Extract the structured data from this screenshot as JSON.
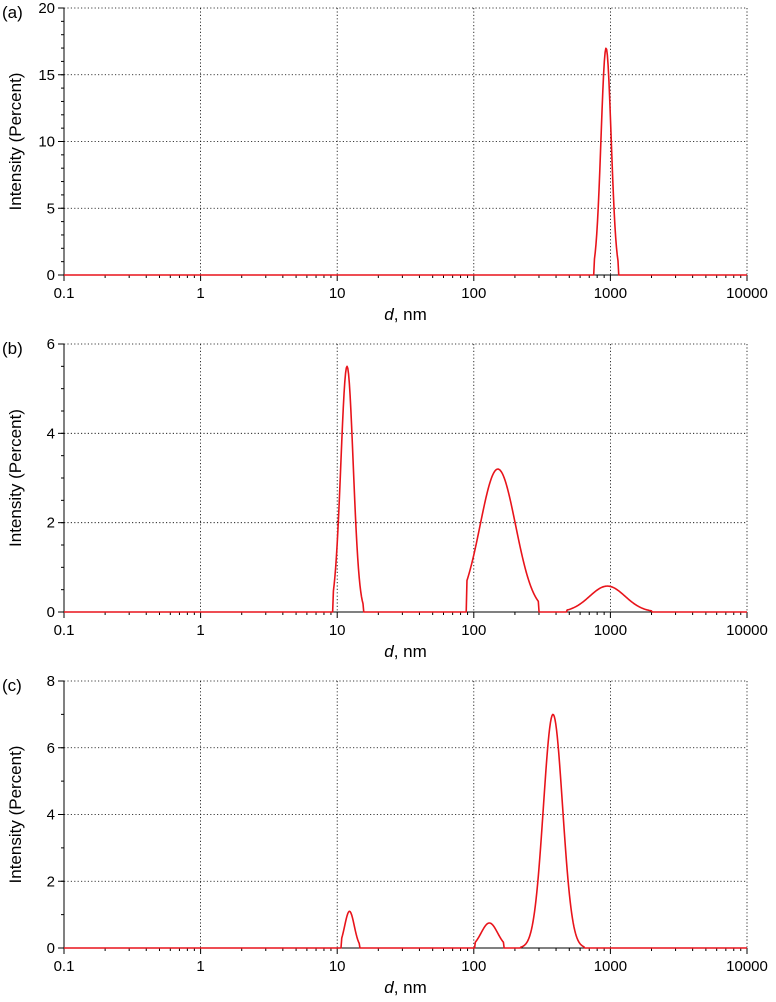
{
  "chart_data": [
    {
      "type": "line",
      "panel_label": "(a)",
      "xlabel_italic": "d",
      "xlabel_rest": ", nm",
      "ylabel": "Intensity (Percent)",
      "xscale": "log",
      "xlim": [
        0.1,
        10000
      ],
      "ylim": [
        0,
        20
      ],
      "x_ticks": [
        0.1,
        1,
        10,
        100,
        1000,
        10000
      ],
      "x_tick_labels": [
        "0.1",
        "1",
        "10",
        "100",
        "1000",
        "10000"
      ],
      "y_ticks": [
        0,
        5,
        10,
        15,
        20
      ],
      "y_tick_labels": [
        "0",
        "5",
        "10",
        "15",
        "20"
      ],
      "y_minor_step": 1,
      "grid": true,
      "line_color": "#e8141b",
      "series": [
        {
          "peaks": [
            {
              "center": 930,
              "height": 17.0,
              "sigma_log10": 0.037,
              "lo": 760,
              "hi": 1150
            }
          ]
        }
      ]
    },
    {
      "type": "line",
      "panel_label": "(b)",
      "xlabel_italic": "d",
      "xlabel_rest": ", nm",
      "ylabel": "Intensity (Percent)",
      "xscale": "log",
      "xlim": [
        0.1,
        10000
      ],
      "ylim": [
        0,
        6
      ],
      "x_ticks": [
        0.1,
        1,
        10,
        100,
        1000,
        10000
      ],
      "x_tick_labels": [
        "0.1",
        "1",
        "10",
        "100",
        "1000",
        "10000"
      ],
      "y_ticks": [
        0,
        2,
        4,
        6
      ],
      "y_tick_labels": [
        "0",
        "2",
        "4",
        "6"
      ],
      "y_minor_step": 0.5,
      "grid": true,
      "line_color": "#e8141b",
      "series": [
        {
          "peaks": [
            {
              "center": 11.8,
              "height": 5.5,
              "sigma_log10": 0.045,
              "lo": 9.3,
              "hi": 15.5
            },
            {
              "center": 150,
              "height": 3.2,
              "sigma_log10": 0.13,
              "lo": 88,
              "hi": 300
            },
            {
              "center": 950,
              "height": 0.58,
              "sigma_log10": 0.13,
              "lo": 480,
              "hi": 2000
            }
          ]
        }
      ]
    },
    {
      "type": "line",
      "panel_label": "(c)",
      "xlabel_italic": "d",
      "xlabel_rest": ", nm",
      "ylabel": "Intensity (Percent)",
      "xscale": "log",
      "xlim": [
        0.1,
        10000
      ],
      "ylim": [
        0,
        8
      ],
      "x_ticks": [
        0.1,
        1,
        10,
        100,
        1000,
        10000
      ],
      "x_tick_labels": [
        "0.1",
        "1",
        "10",
        "100",
        "1000",
        "10000"
      ],
      "y_ticks": [
        0,
        2,
        4,
        6,
        8
      ],
      "y_tick_labels": [
        "0",
        "2",
        "4",
        "6",
        "8"
      ],
      "y_minor_step": 1,
      "grid": true,
      "line_color": "#e8141b",
      "series": [
        {
          "peaks": [
            {
              "center": 12.3,
              "height": 1.1,
              "sigma_log10": 0.035,
              "lo": 10.7,
              "hi": 14.5
            },
            {
              "center": 130,
              "height": 0.75,
              "sigma_log10": 0.06,
              "lo": 102,
              "hi": 165
            },
            {
              "center": 380,
              "height": 7.0,
              "sigma_log10": 0.07,
              "lo": 220,
              "hi": 640
            }
          ]
        }
      ]
    }
  ]
}
